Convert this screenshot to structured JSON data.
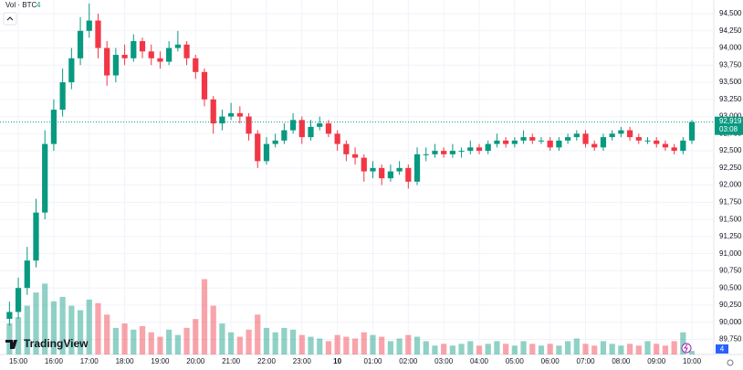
{
  "chart_data": {
    "type": "candlestick",
    "volume_title": "Vol · BTC",
    "watermark": "TradingView",
    "countdown": "03:08",
    "close_label": "92,919",
    "up_color": "#089981",
    "down_color": "#f23645",
    "grid": true,
    "x": [
      -15,
      0,
      15,
      30,
      45,
      60,
      75,
      90,
      105,
      120,
      135,
      150,
      165,
      180,
      195,
      210,
      225,
      240,
      255,
      270,
      285,
      300,
      315,
      330,
      345,
      360,
      375,
      390,
      405,
      420,
      435,
      450,
      465,
      480,
      495,
      510,
      525,
      540,
      555,
      570,
      585,
      600,
      615,
      630,
      645,
      660,
      675,
      690,
      705,
      720,
      735,
      750,
      765,
      780,
      795,
      810,
      825,
      840,
      855,
      870,
      885,
      900,
      915,
      930,
      945,
      960,
      975,
      990,
      1005,
      1020,
      1035,
      1050,
      1065,
      1080,
      1095,
      1110,
      1125,
      1140
    ],
    "open": [
      90050,
      90150,
      90500,
      90900,
      91600,
      92600,
      93100,
      93500,
      93850,
      94250,
      94400,
      94000,
      93600,
      93900,
      93850,
      94100,
      93950,
      93850,
      93800,
      94000,
      94050,
      93850,
      93650,
      93250,
      92900,
      93000,
      93050,
      93000,
      92750,
      92350,
      92600,
      92650,
      92800,
      92950,
      92700,
      92850,
      92900,
      92750,
      92600,
      92450,
      92400,
      92200,
      92250,
      92100,
      92200,
      92250,
      92050,
      92450,
      92450,
      92500,
      92450,
      92500,
      92500,
      92550,
      92500,
      92600,
      92650,
      92600,
      92650,
      92700,
      92650,
      92650,
      92550,
      92650,
      92700,
      92750,
      92600,
      92550,
      92700,
      92750,
      92800,
      92700,
      92650,
      92650,
      92600,
      92550,
      92500,
      92650
    ],
    "high": [
      90300,
      90650,
      91100,
      91800,
      92800,
      93250,
      93700,
      94000,
      94450,
      94650,
      94500,
      94100,
      94000,
      94050,
      94200,
      94150,
      94050,
      93950,
      94100,
      94250,
      94100,
      93900,
      93700,
      93300,
      93100,
      93200,
      93150,
      93050,
      92800,
      92700,
      92750,
      92900,
      93050,
      93000,
      92950,
      93000,
      92950,
      92800,
      92650,
      92550,
      92450,
      92350,
      92300,
      92300,
      92350,
      92300,
      92550,
      92550,
      92600,
      92550,
      92600,
      92550,
      92650,
      92600,
      92650,
      92750,
      92700,
      92700,
      92800,
      92750,
      92700,
      92700,
      92700,
      92750,
      92800,
      92800,
      92650,
      92750,
      92800,
      92850,
      92850,
      92750,
      92700,
      92700,
      92650,
      92600,
      92700,
      92950
    ],
    "low": [
      89950,
      90050,
      90400,
      90800,
      91500,
      92500,
      93000,
      93400,
      93750,
      94150,
      93850,
      93450,
      93500,
      93750,
      93800,
      93850,
      93750,
      93700,
      93750,
      93950,
      93750,
      93550,
      93150,
      92750,
      92800,
      92950,
      92900,
      92650,
      92250,
      92300,
      92550,
      92600,
      92750,
      92600,
      92650,
      92800,
      92700,
      92500,
      92350,
      92300,
      92050,
      92100,
      92000,
      92050,
      92150,
      91950,
      92000,
      92350,
      92400,
      92400,
      92400,
      92400,
      92450,
      92450,
      92450,
      92550,
      92550,
      92550,
      92600,
      92600,
      92600,
      92500,
      92500,
      92600,
      92650,
      92550,
      92500,
      92500,
      92650,
      92700,
      92650,
      92600,
      92600,
      92550,
      92500,
      92450,
      92450,
      92600
    ],
    "close": [
      90150,
      90500,
      90900,
      91600,
      92600,
      93100,
      93500,
      93850,
      94250,
      94400,
      94000,
      93600,
      93900,
      93850,
      94100,
      93950,
      93850,
      93800,
      94000,
      94050,
      93850,
      93650,
      93250,
      92900,
      93000,
      93050,
      93000,
      92750,
      92350,
      92600,
      92650,
      92800,
      92950,
      92700,
      92850,
      92900,
      92750,
      92600,
      92450,
      92400,
      92200,
      92250,
      92100,
      92200,
      92250,
      92050,
      92450,
      92450,
      92500,
      92450,
      92500,
      92500,
      92550,
      92500,
      92600,
      92650,
      92600,
      92650,
      92700,
      92650,
      92650,
      92550,
      92650,
      92700,
      92750,
      92600,
      92550,
      92700,
      92750,
      92800,
      92700,
      92650,
      92650,
      92600,
      92550,
      92500,
      92650,
      92919
    ],
    "volume": [
      35,
      42,
      55,
      70,
      80,
      60,
      65,
      55,
      50,
      62,
      58,
      45,
      30,
      35,
      28,
      32,
      25,
      20,
      28,
      22,
      30,
      40,
      85,
      55,
      35,
      25,
      20,
      28,
      45,
      30,
      25,
      30,
      28,
      22,
      20,
      18,
      15,
      22,
      20,
      18,
      25,
      22,
      20,
      15,
      18,
      22,
      20,
      15,
      10,
      12,
      10,
      12,
      15,
      10,
      12,
      15,
      12,
      10,
      15,
      12,
      10,
      12,
      10,
      15,
      18,
      12,
      10,
      15,
      12,
      10,
      12,
      10,
      15,
      12,
      10,
      15,
      25,
      4
    ],
    "volume_ylim": [
      0,
      400
    ],
    "xlim": [
      -31,
      1177
    ],
    "ylim": [
      89530,
      94700
    ],
    "xticks": [
      {
        "value": 0,
        "label": "15:00"
      },
      {
        "value": 60,
        "label": "16:00"
      },
      {
        "value": 120,
        "label": "17:00"
      },
      {
        "value": 180,
        "label": "18:00"
      },
      {
        "value": 240,
        "label": "19:00"
      },
      {
        "value": 300,
        "label": "20:00"
      },
      {
        "value": 360,
        "label": "21:00"
      },
      {
        "value": 420,
        "label": "22:00"
      },
      {
        "value": 480,
        "label": "23:00"
      },
      {
        "value": 540,
        "label": "10"
      },
      {
        "value": 600,
        "label": "01:00"
      },
      {
        "value": 660,
        "label": "02:00"
      },
      {
        "value": 720,
        "label": "03:00"
      },
      {
        "value": 780,
        "label": "04:00"
      },
      {
        "value": 840,
        "label": "05:00"
      },
      {
        "value": 900,
        "label": "06:00"
      },
      {
        "value": 960,
        "label": "07:00"
      },
      {
        "value": 1020,
        "label": "08:00"
      },
      {
        "value": 1080,
        "label": "09:00"
      },
      {
        "value": 1140,
        "label": "10:00"
      }
    ],
    "yticks": [
      {
        "value": 89750,
        "label": "89,750"
      },
      {
        "value": 90000,
        "label": "90,000"
      },
      {
        "value": 90250,
        "label": "90,250"
      },
      {
        "value": 90500,
        "label": "90,500"
      },
      {
        "value": 90750,
        "label": "90,750"
      },
      {
        "value": 91000,
        "label": "91,000"
      },
      {
        "value": 91250,
        "label": "91,250"
      },
      {
        "value": 91500,
        "label": "91,500"
      },
      {
        "value": 91750,
        "label": "91,750"
      },
      {
        "value": 92000,
        "label": "92,000"
      },
      {
        "value": 92250,
        "label": "92,250"
      },
      {
        "value": 92500,
        "label": "92,500"
      },
      {
        "value": 92750,
        "label": "92,750"
      },
      {
        "value": 93000,
        "label": "93,000"
      },
      {
        "value": 93250,
        "label": "93,250"
      },
      {
        "value": 93500,
        "label": "93,500"
      },
      {
        "value": 93750,
        "label": "93,750"
      },
      {
        "value": 94000,
        "label": "94,000"
      },
      {
        "value": 94250,
        "label": "94,250"
      },
      {
        "value": 94500,
        "label": "94,500"
      }
    ]
  }
}
